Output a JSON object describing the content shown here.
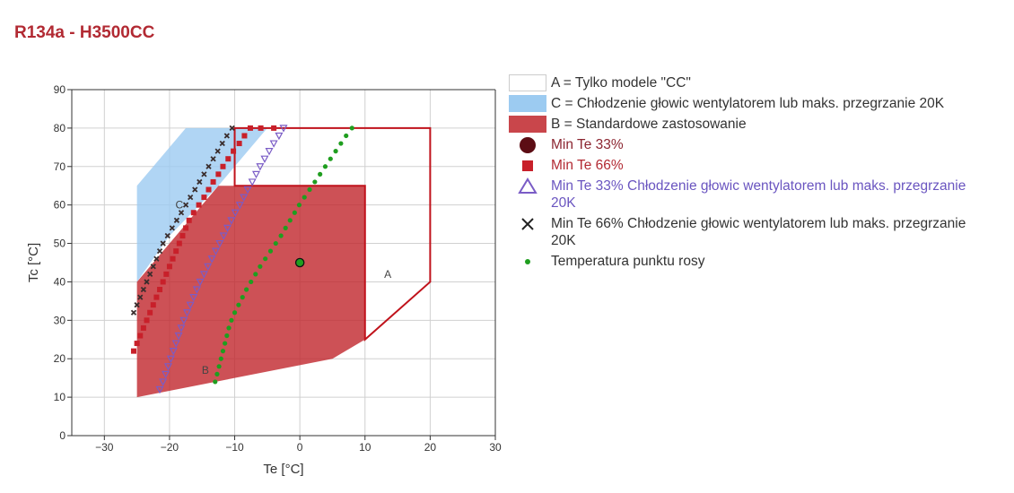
{
  "page": {
    "title": "R134a - H3500CC"
  },
  "colors": {
    "title": "#b22a33",
    "region_a_stroke": "#c0121b",
    "region_b_fill": "#c0262c",
    "region_c_fill": "#9ccbf1",
    "min_te_33": "#5c0d14",
    "min_te_66": "#c8202a",
    "min_te_33_fan": "#7a5cc6",
    "min_te_66_fan": "#3a2d2d",
    "dew_point": "#1f9e1f",
    "operating_point": "#1f9e1f"
  },
  "legend": [
    {
      "key": "a",
      "label": "A = Tylko modele \"CC\"",
      "swatch": "box-outline",
      "text_color": "#333333"
    },
    {
      "key": "c",
      "label": "C = Chłodzenie głowic wentylatorem lub maks. przegrzanie 20K",
      "swatch": "box-blue",
      "text_color": "#333333"
    },
    {
      "key": "b",
      "label": "B = Standardowe zastosowanie",
      "swatch": "box-red",
      "text_color": "#333333"
    },
    {
      "key": "min33",
      "label": "Min Te 33%",
      "swatch": "circle",
      "text_color": "#8b2530"
    },
    {
      "key": "min66",
      "label": "Min Te 66%",
      "swatch": "square",
      "text_color": "#b22a33"
    },
    {
      "key": "min33fan",
      "label": "Min Te 33% Chłodzenie głowic wentylatorem lub maks. przegrzanie 20K",
      "swatch": "triangle",
      "text_color": "#6a55c0"
    },
    {
      "key": "min66fan",
      "label": "Min Te 66% Chłodzenie głowic wentylatorem lub maks. przegrzanie 20K",
      "swatch": "cross",
      "text_color": "#333333"
    },
    {
      "key": "dew",
      "label": "Temperatura punktu rosy",
      "swatch": "dot",
      "text_color": "#333333"
    }
  ],
  "chart_data": {
    "type": "scatter",
    "xlabel": "Te [°C]",
    "ylabel": "Tc [°C]",
    "xlim": [
      -35,
      30
    ],
    "ylim": [
      0,
      90
    ],
    "x_ticks": [
      -30,
      -20,
      -10,
      0,
      10,
      20,
      30
    ],
    "x_tick_labels": [
      "−30",
      "−20",
      "−10",
      "0",
      "10",
      "20",
      "30"
    ],
    "y_ticks": [
      0,
      10,
      20,
      30,
      40,
      50,
      60,
      70,
      80,
      90
    ],
    "y_tick_labels": [
      "0",
      "10",
      "20",
      "30",
      "40",
      "50",
      "60",
      "70",
      "80",
      "90"
    ],
    "grid": true,
    "legend_position": "right",
    "regions": [
      {
        "name": "A",
        "label": "A",
        "label_at": [
          13.5,
          42
        ],
        "style": "outline",
        "points": [
          [
            -10,
            80
          ],
          [
            20,
            80
          ],
          [
            20,
            40
          ],
          [
            10,
            25
          ],
          [
            10,
            65
          ],
          [
            -10,
            65
          ]
        ]
      },
      {
        "name": "C",
        "label": "C",
        "label_at": [
          -18.5,
          60
        ],
        "style": "blue",
        "points": [
          [
            -25,
            40
          ],
          [
            -25,
            65
          ],
          [
            -17.5,
            80
          ],
          [
            -5,
            80
          ],
          [
            -12.5,
            65
          ],
          [
            -20,
            52
          ]
        ]
      },
      {
        "name": "B",
        "label": "B",
        "label_at": [
          -14.5,
          17
        ],
        "style": "red",
        "points": [
          [
            -25,
            10
          ],
          [
            -25,
            40
          ],
          [
            -12.5,
            65
          ],
          [
            10,
            65
          ],
          [
            10,
            25
          ],
          [
            5,
            20
          ]
        ]
      }
    ],
    "series": [
      {
        "name": "Min Te 33%",
        "marker": "circle",
        "points": [
          [
            0,
            45
          ]
        ]
      },
      {
        "name": "Min Te 66%",
        "marker": "square",
        "points": [
          [
            -25.5,
            22
          ],
          [
            -25,
            24
          ],
          [
            -24.5,
            26
          ],
          [
            -24,
            28
          ],
          [
            -23.5,
            30
          ],
          [
            -23,
            32
          ],
          [
            -22.5,
            34
          ],
          [
            -22,
            36
          ],
          [
            -21.5,
            38
          ],
          [
            -21,
            40
          ],
          [
            -20.5,
            42
          ],
          [
            -20,
            44
          ],
          [
            -19.5,
            46
          ],
          [
            -19,
            48
          ],
          [
            -18.5,
            50
          ],
          [
            -18,
            52
          ],
          [
            -17.5,
            54
          ],
          [
            -17,
            56
          ],
          [
            -16.3,
            58
          ],
          [
            -15.5,
            60
          ],
          [
            -14.7,
            62
          ],
          [
            -14,
            64
          ],
          [
            -13.3,
            66
          ],
          [
            -12.5,
            68
          ],
          [
            -11.8,
            70
          ],
          [
            -11,
            72
          ],
          [
            -10.2,
            74
          ],
          [
            -9.3,
            76
          ],
          [
            -8.5,
            78
          ],
          [
            -7.6,
            80
          ],
          [
            -6,
            80
          ],
          [
            -4,
            80
          ]
        ]
      },
      {
        "name": "Min Te 33% Chłodzenie głowic wentylatorem lub maks. przegrzanie 20K",
        "marker": "triangle",
        "points": [
          [
            -21.5,
            12
          ],
          [
            -21,
            14
          ],
          [
            -20.6,
            16
          ],
          [
            -20.2,
            18
          ],
          [
            -19.8,
            20
          ],
          [
            -19.4,
            22
          ],
          [
            -19,
            24
          ],
          [
            -18.6,
            26
          ],
          [
            -18.2,
            28
          ],
          [
            -17.8,
            30
          ],
          [
            -17.3,
            32
          ],
          [
            -16.8,
            34
          ],
          [
            -16.3,
            36
          ],
          [
            -15.8,
            38
          ],
          [
            -15.3,
            40
          ],
          [
            -14.7,
            42
          ],
          [
            -14.1,
            44
          ],
          [
            -13.5,
            46
          ],
          [
            -12.9,
            48
          ],
          [
            -12.3,
            50
          ],
          [
            -11.7,
            52
          ],
          [
            -11.1,
            54
          ],
          [
            -10.5,
            56
          ],
          [
            -9.9,
            58
          ],
          [
            -9.2,
            60
          ],
          [
            -8.6,
            62
          ],
          [
            -8,
            64
          ],
          [
            -7.3,
            66
          ],
          [
            -6.7,
            68
          ],
          [
            -6.1,
            70
          ],
          [
            -5.4,
            72
          ],
          [
            -4.7,
            74
          ],
          [
            -4,
            76
          ],
          [
            -3.2,
            78
          ],
          [
            -2.5,
            80
          ]
        ]
      },
      {
        "name": "Min Te 66% Chłodzenie głowic wentylatorem lub maks. przegrzanie 20K",
        "marker": "cross",
        "points": [
          [
            -25.5,
            32
          ],
          [
            -25,
            34
          ],
          [
            -24.5,
            36
          ],
          [
            -24,
            38
          ],
          [
            -23.5,
            40
          ],
          [
            -23,
            42
          ],
          [
            -22.5,
            44
          ],
          [
            -22,
            46
          ],
          [
            -21.5,
            48
          ],
          [
            -21,
            50
          ],
          [
            -20.3,
            52
          ],
          [
            -19.6,
            54
          ],
          [
            -18.9,
            56
          ],
          [
            -18.2,
            58
          ],
          [
            -17.5,
            60
          ],
          [
            -16.8,
            62
          ],
          [
            -16.1,
            64
          ],
          [
            -15.4,
            66
          ],
          [
            -14.7,
            68
          ],
          [
            -14,
            70
          ],
          [
            -13.3,
            72
          ],
          [
            -12.6,
            74
          ],
          [
            -11.9,
            76
          ],
          [
            -11.2,
            78
          ],
          [
            -10.4,
            80
          ]
        ]
      },
      {
        "name": "Temperatura punktu rosy",
        "marker": "dot",
        "points": [
          [
            -13,
            14
          ],
          [
            -12.7,
            16
          ],
          [
            -12.4,
            18
          ],
          [
            -12.1,
            20
          ],
          [
            -11.8,
            22
          ],
          [
            -11.5,
            24
          ],
          [
            -11.2,
            26
          ],
          [
            -10.9,
            28
          ],
          [
            -10.5,
            30
          ],
          [
            -10,
            32
          ],
          [
            -9.4,
            34
          ],
          [
            -8.8,
            36
          ],
          [
            -8.2,
            38
          ],
          [
            -7.5,
            40
          ],
          [
            -6.8,
            42
          ],
          [
            -6.1,
            44
          ],
          [
            -5.3,
            46
          ],
          [
            -4.5,
            48
          ],
          [
            -3.7,
            50
          ],
          [
            -2.9,
            52
          ],
          [
            -2.2,
            54
          ],
          [
            -1.5,
            56
          ],
          [
            -0.8,
            58
          ],
          [
            -0.1,
            60
          ],
          [
            0.7,
            62
          ],
          [
            1.5,
            64
          ],
          [
            2.3,
            66
          ],
          [
            3.1,
            68
          ],
          [
            3.9,
            70
          ],
          [
            4.7,
            72
          ],
          [
            5.5,
            74
          ],
          [
            6.3,
            76
          ],
          [
            7.1,
            78
          ],
          [
            8,
            80
          ]
        ]
      }
    ]
  }
}
